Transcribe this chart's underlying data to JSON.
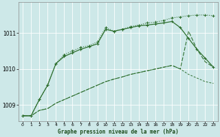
{
  "bg_color": "#cde8e8",
  "grid_color": "#aacccc",
  "line_color": "#2d6e2d",
  "xlabel": "Graphe pression niveau de la mer (hPa)",
  "xlim": [
    -0.5,
    23.5
  ],
  "ylim": [
    1008.55,
    1011.85
  ],
  "yticks": [
    1009,
    1010,
    1011
  ],
  "xticks": [
    0,
    1,
    2,
    3,
    4,
    5,
    6,
    7,
    8,
    9,
    10,
    11,
    12,
    13,
    14,
    15,
    16,
    17,
    18,
    19,
    20,
    21,
    22,
    23
  ],
  "line1_x": [
    0,
    1,
    2,
    3,
    4,
    5,
    6,
    7,
    8,
    9,
    10,
    11,
    12,
    13,
    14,
    15,
    16,
    17,
    18,
    19,
    20,
    21,
    22,
    23
  ],
  "line1_y": [
    1008.7,
    1008.7,
    1008.85,
    1008.9,
    1009.05,
    1009.15,
    1009.25,
    1009.35,
    1009.45,
    1009.55,
    1009.65,
    1009.72,
    1009.78,
    1009.85,
    1009.9,
    1009.95,
    1010.0,
    1010.05,
    1010.1,
    1010.0,
    1009.85,
    1009.75,
    1009.65,
    1009.6
  ],
  "line2_x": [
    0,
    1,
    2,
    3,
    4,
    5,
    6,
    7,
    8,
    9,
    10,
    11,
    12,
    13,
    14,
    15,
    16,
    17,
    18,
    19,
    20,
    21,
    22,
    23
  ],
  "line2_y": [
    1008.7,
    1008.7,
    1008.85,
    1008.9,
    1009.05,
    1009.15,
    1009.25,
    1009.35,
    1009.45,
    1009.55,
    1009.65,
    1009.72,
    1009.78,
    1009.85,
    1009.9,
    1009.95,
    1010.0,
    1010.05,
    1010.1,
    1010.0,
    1011.05,
    1010.55,
    1010.2,
    1010.05
  ],
  "line3_x": [
    0,
    1,
    2,
    3,
    4,
    5,
    6,
    7,
    8,
    9,
    10,
    11,
    12,
    13,
    14,
    15,
    16,
    17,
    18,
    19,
    20,
    21,
    22,
    23
  ],
  "line3_y": [
    1008.7,
    1008.7,
    1009.15,
    1009.55,
    1010.15,
    1010.35,
    1010.45,
    1010.55,
    1010.62,
    1010.7,
    1011.1,
    1011.05,
    1011.1,
    1011.15,
    1011.2,
    1011.22,
    1011.25,
    1011.28,
    1011.32,
    1011.15,
    1010.85,
    1010.55,
    1010.3,
    1010.05
  ],
  "line4_x": [
    0,
    1,
    2,
    3,
    4,
    5,
    6,
    7,
    8,
    9,
    10,
    11,
    12,
    13,
    14,
    15,
    16,
    17,
    18,
    19,
    20,
    21,
    22,
    23
  ],
  "line4_y": [
    1008.7,
    1008.7,
    1009.15,
    1009.55,
    1010.15,
    1010.4,
    1010.5,
    1010.6,
    1010.65,
    1010.75,
    1011.15,
    1011.05,
    1011.1,
    1011.18,
    1011.22,
    1011.28,
    1011.3,
    1011.35,
    1011.42,
    1011.45,
    1011.48,
    1011.5,
    1011.5,
    1011.48
  ]
}
